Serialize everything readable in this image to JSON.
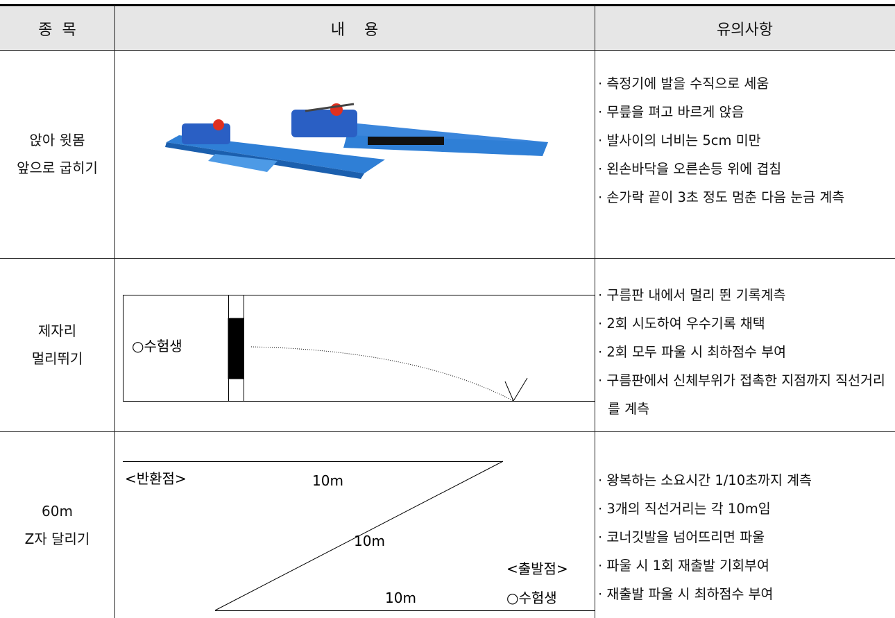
{
  "table": {
    "header": [
      "종  목",
      "내    용",
      "유의사항"
    ],
    "rows": [
      {
        "item": [
          "앉아 윗몸",
          "앞으로 굽히기"
        ],
        "notes": [
          "· 측정기에 발을 수직으로 세움",
          "· 무릎을 펴고 바르게 앉음",
          "· 발사이의 너비는 5cm 미만",
          "· 왼손바닥을 오른손등 위에 겹침",
          "· 손가락 끝이 3초 정도 멈춘 다음 눈금 계측"
        ]
      },
      {
        "item": [
          "제자리",
          "멀리뛰기"
        ],
        "notes": [
          "· 구름판 내에서 멀리 뛴 기록계측",
          "· 2회 시도하여 우수기록 채택",
          "· 2회 모두 파울 시 최하점수 부여",
          "· 구름판에서 신체부위가 접촉한 지점까지 직선거리를 계측"
        ]
      },
      {
        "item": [
          "60m",
          "Z자 달리기"
        ],
        "notes": [
          "· 왕복하는 소요시간 1/10초까지 계측",
          "· 3개의 직선거리는 각 10m임",
          "· 코너깃발을 넘어뜨리면 파울",
          "· 파울 시 1회 재출발 기회부여",
          "· 재출발 파울 시 최하점수 부여"
        ]
      }
    ]
  },
  "diagrams": {
    "long_jump": {
      "student": "○수험생"
    },
    "z_run": {
      "turn_point": "<반환점>",
      "start_point": "<출발점>",
      "distances": [
        "10m",
        "10m",
        "10m"
      ],
      "student": "○수험생"
    }
  }
}
